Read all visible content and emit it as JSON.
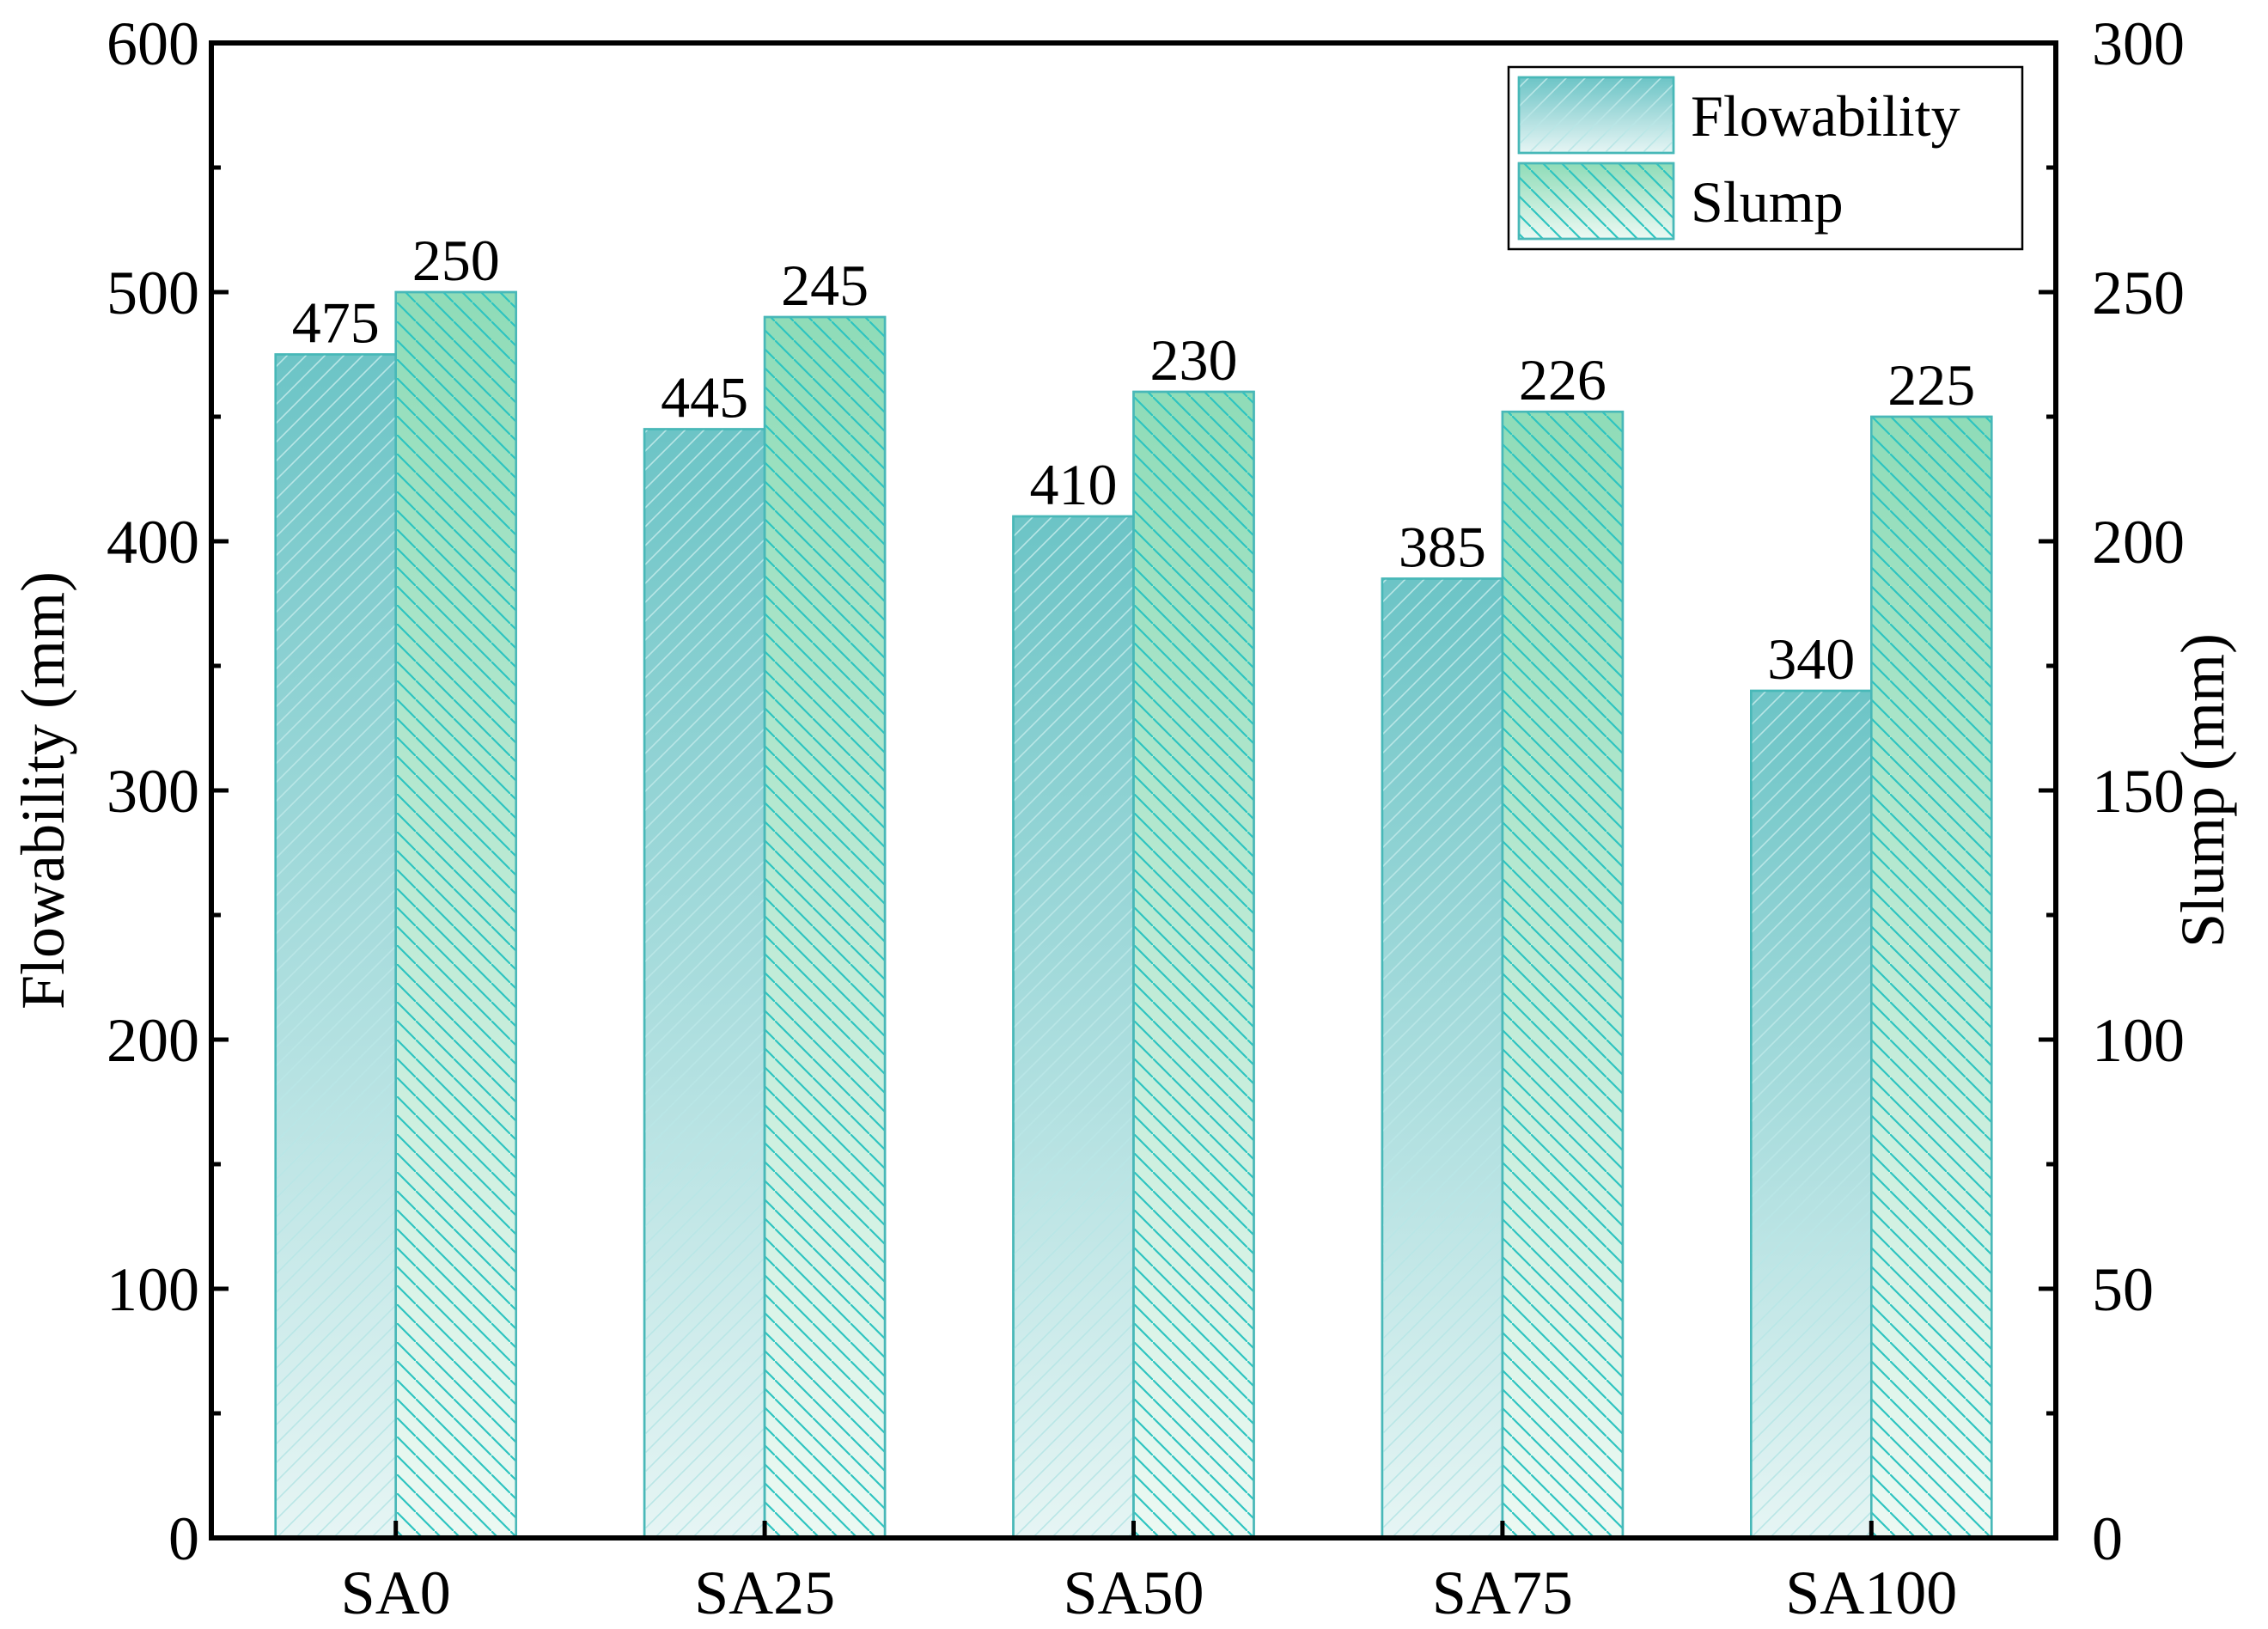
{
  "chart_data": {
    "type": "bar",
    "categories": [
      "SA0",
      "SA25",
      "SA50",
      "SA75",
      "SA100"
    ],
    "series": [
      {
        "name": "Flowability",
        "axis": "left",
        "values": [
          475,
          445,
          410,
          385,
          340
        ],
        "value_labels": [
          "475",
          "445",
          "410",
          "385",
          "340"
        ],
        "color_top": "#6cc4c6",
        "color_bottom": "#e6f5f4",
        "hatch_color": "#b9e6e6"
      },
      {
        "name": "Slump",
        "axis": "right",
        "values": [
          250,
          245,
          230,
          226,
          225
        ],
        "value_labels": [
          "250",
          "245",
          "230",
          "226",
          "225"
        ],
        "color_top": "#8fdcb8",
        "color_bottom": "#ecf9f3",
        "hatch_color": "#2ec4c0"
      }
    ],
    "ylabel_left": "Flowability (mm)",
    "ylabel_right": "Slump (mm)",
    "ylim_left": [
      0,
      600
    ],
    "ylim_right": [
      0,
      300
    ],
    "yticks_left": [
      "0",
      "100",
      "200",
      "300",
      "400",
      "500",
      "600"
    ],
    "yticks_right": [
      "0",
      "50",
      "100",
      "150",
      "200",
      "250",
      "300"
    ],
    "grid": false,
    "legend_position": "top-right",
    "edge_color": "#48b8b8"
  }
}
